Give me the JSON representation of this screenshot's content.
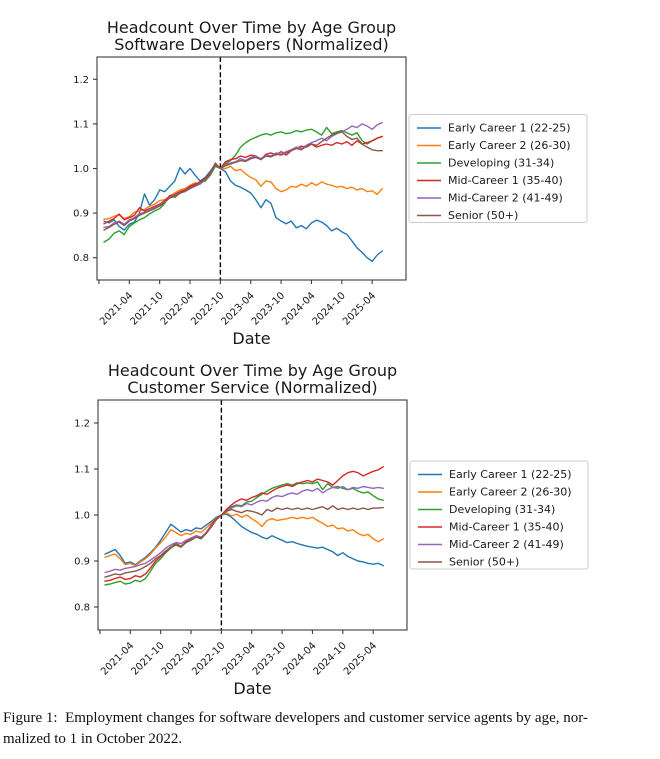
{
  "figure": {
    "caption_line1": "Figure 1:  Employment changes for software developers and customer service agents by age, nor-",
    "caption_line2": "malized to 1 in October 2022."
  },
  "colors": {
    "blue": "#1f77b4",
    "orange": "#ff7f0e",
    "green": "#2ca02c",
    "red": "#d62728",
    "purple": "#9467bd",
    "brown": "#8c564b",
    "vline": "#000000",
    "spine": "#3d3d3d",
    "legend_border": "#cccccc",
    "text": "#1a1a1a"
  },
  "chart_data": [
    {
      "type": "line",
      "title_line1": "Headcount Over Time by Age Group",
      "title_line2": "Software Developers (Normalized)",
      "xlabel": "Date",
      "ylabel": "",
      "ylim": [
        0.75,
        1.25
      ],
      "yticks": [
        "0.8",
        "0.9",
        "1.0",
        "1.1",
        "1.2"
      ],
      "ytick_values": [
        0.8,
        0.9,
        1.0,
        1.1,
        1.2
      ],
      "x_monthly_from": "2020-11",
      "x_monthly_to": "2025-06",
      "x_tick_indices": [
        -1,
        5,
        11,
        17,
        23,
        29,
        35,
        41,
        47,
        53
      ],
      "x_tick_labels": [
        "",
        "2021-04",
        "2021-10",
        "2022-04",
        "2022-10",
        "2023-04",
        "2023-10",
        "2024-04",
        "2024-10",
        "2025-04"
      ],
      "vline_index": 23,
      "vline_style": "dashed",
      "legend_position": "outside-center-right",
      "grid": false,
      "series": [
        {
          "name": "Early Career 1 (22-25)",
          "color": "#1f77b4",
          "values": [
            0.882,
            0.878,
            0.885,
            0.87,
            0.862,
            0.875,
            0.88,
            0.9,
            0.943,
            0.918,
            0.93,
            0.952,
            0.948,
            0.96,
            0.972,
            1.002,
            0.988,
            1.0,
            0.985,
            0.972,
            0.98,
            0.994,
            1.01,
            1.0,
            0.993,
            0.972,
            0.962,
            0.958,
            0.952,
            0.945,
            0.93,
            0.912,
            0.93,
            0.922,
            0.89,
            0.882,
            0.876,
            0.882,
            0.867,
            0.872,
            0.865,
            0.878,
            0.884,
            0.88,
            0.872,
            0.86,
            0.866,
            0.858,
            0.852,
            0.838,
            0.822,
            0.812,
            0.8,
            0.792,
            0.806,
            0.815
          ]
        },
        {
          "name": "Early Career 2 (26-30)",
          "color": "#ff7f0e",
          "values": [
            0.886,
            0.888,
            0.893,
            0.896,
            0.888,
            0.892,
            0.902,
            0.905,
            0.908,
            0.915,
            0.92,
            0.928,
            0.93,
            0.938,
            0.945,
            0.952,
            0.955,
            0.962,
            0.968,
            0.965,
            0.975,
            0.985,
            1.008,
            1.0,
            1.0,
            1.005,
            0.995,
            0.998,
            0.988,
            0.98,
            0.975,
            0.96,
            0.972,
            0.97,
            0.955,
            0.948,
            0.952,
            0.96,
            0.958,
            0.965,
            0.96,
            0.968,
            0.962,
            0.97,
            0.965,
            0.962,
            0.958,
            0.96,
            0.955,
            0.958,
            0.952,
            0.955,
            0.948,
            0.95,
            0.942,
            0.955
          ]
        },
        {
          "name": "Developing (31-34)",
          "color": "#2ca02c",
          "values": [
            0.835,
            0.842,
            0.855,
            0.86,
            0.852,
            0.87,
            0.878,
            0.885,
            0.89,
            0.898,
            0.905,
            0.91,
            0.922,
            0.94,
            0.935,
            0.945,
            0.95,
            0.958,
            0.962,
            0.968,
            0.972,
            0.985,
            1.005,
            1.0,
            1.01,
            1.018,
            1.03,
            1.048,
            1.058,
            1.065,
            1.07,
            1.075,
            1.078,
            1.075,
            1.08,
            1.082,
            1.078,
            1.08,
            1.085,
            1.082,
            1.086,
            1.088,
            1.082,
            1.075,
            1.092,
            1.078,
            1.082,
            1.085,
            1.08,
            1.075,
            1.08,
            1.062,
            1.055,
            1.062,
            1.068,
            1.072
          ]
        },
        {
          "name": "Mid-Career 1 (35-40)",
          "color": "#d62728",
          "values": [
            0.876,
            0.882,
            0.888,
            0.898,
            0.885,
            0.89,
            0.895,
            0.912,
            0.905,
            0.91,
            0.915,
            0.92,
            0.928,
            0.938,
            0.942,
            0.948,
            0.952,
            0.96,
            0.965,
            0.97,
            0.978,
            0.99,
            1.012,
            1.0,
            1.015,
            1.02,
            1.022,
            1.028,
            1.025,
            1.03,
            1.028,
            1.02,
            1.032,
            1.035,
            1.03,
            1.038,
            1.03,
            1.04,
            1.045,
            1.05,
            1.048,
            1.055,
            1.048,
            1.052,
            1.055,
            1.052,
            1.058,
            1.055,
            1.06,
            1.052,
            1.062,
            1.055,
            1.058,
            1.062,
            1.068,
            1.072
          ]
        },
        {
          "name": "Mid-Career 2 (41-49)",
          "color": "#9467bd",
          "values": [
            0.868,
            0.87,
            0.878,
            0.882,
            0.875,
            0.885,
            0.89,
            0.898,
            0.902,
            0.908,
            0.912,
            0.918,
            0.925,
            0.935,
            0.94,
            0.945,
            0.948,
            0.955,
            0.96,
            0.965,
            0.975,
            0.988,
            1.01,
            1.0,
            1.008,
            1.012,
            1.015,
            1.022,
            1.018,
            1.025,
            1.028,
            1.022,
            1.03,
            1.028,
            1.035,
            1.032,
            1.038,
            1.042,
            1.048,
            1.045,
            1.052,
            1.058,
            1.062,
            1.068,
            1.062,
            1.072,
            1.078,
            1.082,
            1.088,
            1.095,
            1.092,
            1.1,
            1.095,
            1.088,
            1.098,
            1.103
          ]
        },
        {
          "name": "Senior (50+)",
          "color": "#8c564b",
          "values": [
            0.862,
            0.868,
            0.875,
            0.88,
            0.872,
            0.882,
            0.888,
            0.895,
            0.9,
            0.905,
            0.91,
            0.916,
            0.924,
            0.934,
            0.938,
            0.944,
            0.95,
            0.956,
            0.962,
            0.968,
            0.976,
            0.988,
            1.01,
            1.0,
            1.006,
            1.01,
            1.014,
            1.018,
            1.016,
            1.022,
            1.025,
            1.02,
            1.028,
            1.026,
            1.032,
            1.03,
            1.035,
            1.04,
            1.045,
            1.042,
            1.05,
            1.055,
            1.052,
            1.06,
            1.068,
            1.075,
            1.08,
            1.082,
            1.072,
            1.065,
            1.068,
            1.055,
            1.048,
            1.042,
            1.04,
            1.04
          ]
        }
      ]
    },
    {
      "type": "line",
      "title_line1": "Headcount Over Time by Age Group",
      "title_line2": "Customer Service (Normalized)",
      "xlabel": "Date",
      "ylabel": "",
      "ylim": [
        0.75,
        1.25
      ],
      "yticks": [
        "0.8",
        "0.9",
        "1.0",
        "1.1",
        "1.2"
      ],
      "ytick_values": [
        0.8,
        0.9,
        1.0,
        1.1,
        1.2
      ],
      "x_monthly_from": "2020-11",
      "x_monthly_to": "2025-06",
      "x_tick_indices": [
        -1,
        5,
        11,
        17,
        23,
        29,
        35,
        41,
        47,
        53
      ],
      "x_tick_labels": [
        "",
        "2021-04",
        "2021-10",
        "2022-04",
        "2022-10",
        "2023-04",
        "2023-10",
        "2024-04",
        "2024-10",
        "2025-04"
      ],
      "vline_index": 23,
      "vline_style": "dashed",
      "legend_position": "outside-center-right",
      "grid": false,
      "series": [
        {
          "name": "Early Career 1 (22-25)",
          "color": "#1f77b4",
          "values": [
            0.915,
            0.92,
            0.925,
            0.912,
            0.895,
            0.898,
            0.892,
            0.9,
            0.908,
            0.918,
            0.93,
            0.945,
            0.962,
            0.98,
            0.972,
            0.963,
            0.968,
            0.965,
            0.972,
            0.97,
            0.978,
            0.986,
            0.995,
            1.0,
            1.002,
            0.995,
            0.985,
            0.975,
            0.968,
            0.962,
            0.958,
            0.952,
            0.948,
            0.955,
            0.95,
            0.945,
            0.94,
            0.942,
            0.938,
            0.935,
            0.932,
            0.93,
            0.928,
            0.93,
            0.925,
            0.92,
            0.912,
            0.918,
            0.91,
            0.905,
            0.9,
            0.898,
            0.895,
            0.893,
            0.895,
            0.89
          ]
        },
        {
          "name": "Early Career 2 (26-30)",
          "color": "#ff7f0e",
          "values": [
            0.908,
            0.912,
            0.915,
            0.905,
            0.892,
            0.895,
            0.89,
            0.898,
            0.905,
            0.915,
            0.928,
            0.94,
            0.952,
            0.968,
            0.962,
            0.955,
            0.96,
            0.958,
            0.965,
            0.962,
            0.972,
            0.982,
            0.993,
            1.0,
            1.005,
            0.998,
            1.002,
            0.995,
            1.0,
            0.992,
            0.985,
            0.975,
            0.988,
            0.992,
            0.988,
            0.99,
            0.992,
            0.995,
            0.992,
            0.995,
            0.992,
            0.995,
            0.988,
            0.982,
            0.975,
            0.978,
            0.97,
            0.972,
            0.965,
            0.968,
            0.96,
            0.955,
            0.958,
            0.948,
            0.942,
            0.948
          ]
        },
        {
          "name": "Developing (31-34)",
          "color": "#2ca02c",
          "values": [
            0.848,
            0.85,
            0.853,
            0.856,
            0.85,
            0.852,
            0.858,
            0.855,
            0.862,
            0.878,
            0.895,
            0.905,
            0.918,
            0.928,
            0.935,
            0.93,
            0.94,
            0.945,
            0.952,
            0.948,
            0.96,
            0.975,
            0.99,
            1.0,
            1.01,
            1.018,
            1.022,
            1.02,
            1.028,
            1.03,
            1.038,
            1.045,
            1.052,
            1.058,
            1.062,
            1.065,
            1.068,
            1.065,
            1.07,
            1.068,
            1.07,
            1.068,
            1.072,
            1.055,
            1.068,
            1.06,
            1.062,
            1.058,
            1.055,
            1.058,
            1.052,
            1.048,
            1.05,
            1.042,
            1.035,
            1.032
          ]
        },
        {
          "name": "Mid-Career 1 (35-40)",
          "color": "#d62728",
          "values": [
            0.856,
            0.858,
            0.862,
            0.865,
            0.86,
            0.862,
            0.868,
            0.865,
            0.872,
            0.885,
            0.9,
            0.91,
            0.92,
            0.93,
            0.938,
            0.932,
            0.942,
            0.948,
            0.955,
            0.95,
            0.962,
            0.978,
            0.992,
            1.0,
            1.012,
            1.022,
            1.03,
            1.035,
            1.032,
            1.038,
            1.042,
            1.048,
            1.045,
            1.052,
            1.058,
            1.062,
            1.065,
            1.062,
            1.068,
            1.072,
            1.075,
            1.072,
            1.078,
            1.075,
            1.072,
            1.065,
            1.075,
            1.085,
            1.092,
            1.095,
            1.092,
            1.085,
            1.09,
            1.095,
            1.098,
            1.105
          ]
        },
        {
          "name": "Mid-Career 2 (41-49)",
          "color": "#9467bd",
          "values": [
            0.875,
            0.878,
            0.882,
            0.88,
            0.884,
            0.886,
            0.888,
            0.892,
            0.895,
            0.902,
            0.91,
            0.918,
            0.928,
            0.935,
            0.94,
            0.938,
            0.945,
            0.95,
            0.955,
            0.952,
            0.962,
            0.975,
            0.99,
            1.0,
            1.008,
            1.015,
            1.02,
            1.018,
            1.025,
            1.022,
            1.028,
            1.032,
            1.03,
            1.038,
            1.042,
            1.04,
            1.045,
            1.048,
            1.045,
            1.052,
            1.055,
            1.052,
            1.058,
            1.048,
            1.055,
            1.06,
            1.058,
            1.062,
            1.055,
            1.06,
            1.058,
            1.062,
            1.06,
            1.058,
            1.06,
            1.058
          ]
        },
        {
          "name": "Senior (50+)",
          "color": "#8c564b",
          "values": [
            0.865,
            0.868,
            0.872,
            0.87,
            0.874,
            0.876,
            0.878,
            0.882,
            0.888,
            0.895,
            0.905,
            0.912,
            0.922,
            0.93,
            0.936,
            0.932,
            0.94,
            0.946,
            0.952,
            0.95,
            0.96,
            0.974,
            0.99,
            1.0,
            1.008,
            1.012,
            1.008,
            1.005,
            1.01,
            1.008,
            1.005,
            1.0,
            1.012,
            1.008,
            1.015,
            1.012,
            1.015,
            1.012,
            1.015,
            1.012,
            1.015,
            1.012,
            1.015,
            1.018,
            1.012,
            1.02,
            1.012,
            1.015,
            1.012,
            1.015,
            1.012,
            1.015,
            1.012,
            1.015,
            1.015,
            1.016
          ]
        }
      ]
    }
  ]
}
